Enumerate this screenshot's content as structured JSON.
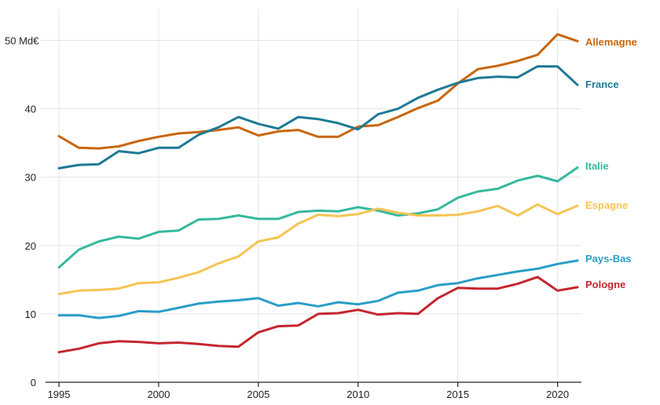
{
  "chart_data": {
    "type": "line",
    "title": "",
    "xlabel": "",
    "ylabel": "",
    "y_unit_label": "50 Md€",
    "xlim": [
      1995,
      2021
    ],
    "ylim": [
      0,
      55
    ],
    "x_ticks": [
      1995,
      2000,
      2005,
      2010,
      2015,
      2020
    ],
    "y_ticks": [
      0,
      10,
      20,
      30,
      40,
      50
    ],
    "y_tick_labels": [
      "0",
      "10",
      "20",
      "30",
      "40",
      "50 Md€"
    ],
    "grid": true,
    "legend": "direct labels at line ends (right)",
    "x": [
      1995,
      1996,
      1997,
      1998,
      1999,
      2000,
      2001,
      2002,
      2003,
      2004,
      2005,
      2006,
      2007,
      2008,
      2009,
      2010,
      2011,
      2012,
      2013,
      2014,
      2015,
      2016,
      2017,
      2018,
      2019,
      2020,
      2021
    ],
    "series": [
      {
        "name": "Allemagne",
        "color": "#c8660c",
        "values": [
          36.0,
          34.3,
          34.2,
          34.5,
          35.3,
          35.9,
          36.4,
          36.6,
          36.9,
          37.3,
          36.1,
          36.7,
          36.9,
          35.9,
          35.9,
          37.4,
          37.6,
          38.8,
          40.1,
          41.2,
          43.7,
          45.8,
          46.3,
          47.0,
          47.9,
          50.9,
          49.9
        ]
      },
      {
        "name": "France",
        "color": "#1e7a96",
        "values": [
          31.3,
          31.8,
          31.9,
          33.8,
          33.5,
          34.3,
          34.3,
          36.2,
          37.3,
          38.8,
          37.8,
          37.1,
          38.8,
          38.5,
          37.9,
          37.0,
          39.2,
          40.0,
          41.6,
          42.8,
          43.8,
          44.5,
          44.7,
          44.6,
          46.2,
          46.2,
          43.5
        ]
      },
      {
        "name": "Italie",
        "color": "#35b99e",
        "values": [
          16.8,
          19.4,
          20.6,
          21.3,
          21.0,
          22.0,
          22.2,
          23.8,
          23.9,
          24.4,
          23.9,
          23.9,
          24.9,
          25.1,
          25.0,
          25.6,
          25.1,
          24.4,
          24.7,
          25.3,
          27.0,
          27.9,
          28.3,
          29.5,
          30.2,
          29.4,
          31.4
        ]
      },
      {
        "name": "Espagne",
        "color": "#f5c453",
        "values": [
          12.9,
          13.4,
          13.5,
          13.7,
          14.5,
          14.6,
          15.3,
          16.1,
          17.4,
          18.4,
          20.6,
          21.2,
          23.2,
          24.5,
          24.3,
          24.6,
          25.4,
          24.8,
          24.4,
          24.4,
          24.5,
          25.0,
          25.8,
          24.4,
          26.0,
          24.6,
          25.8
        ]
      },
      {
        "name": "Pays-Bas",
        "color": "#2a9ec7",
        "values": [
          9.8,
          9.8,
          9.4,
          9.7,
          10.4,
          10.3,
          10.9,
          11.5,
          11.8,
          12.0,
          12.3,
          11.2,
          11.6,
          11.1,
          11.7,
          11.4,
          11.9,
          13.1,
          13.4,
          14.2,
          14.5,
          15.2,
          15.7,
          16.2,
          16.6,
          17.3,
          17.8
        ]
      },
      {
        "name": "Pologne",
        "color": "#c4262e",
        "values": [
          4.4,
          4.9,
          5.7,
          6.0,
          5.9,
          5.7,
          5.8,
          5.6,
          5.3,
          5.2,
          7.3,
          8.2,
          8.3,
          10.0,
          10.1,
          10.6,
          9.9,
          10.1,
          10.0,
          12.3,
          13.8,
          13.7,
          13.7,
          14.4,
          15.4,
          13.4,
          13.9
        ]
      }
    ]
  }
}
